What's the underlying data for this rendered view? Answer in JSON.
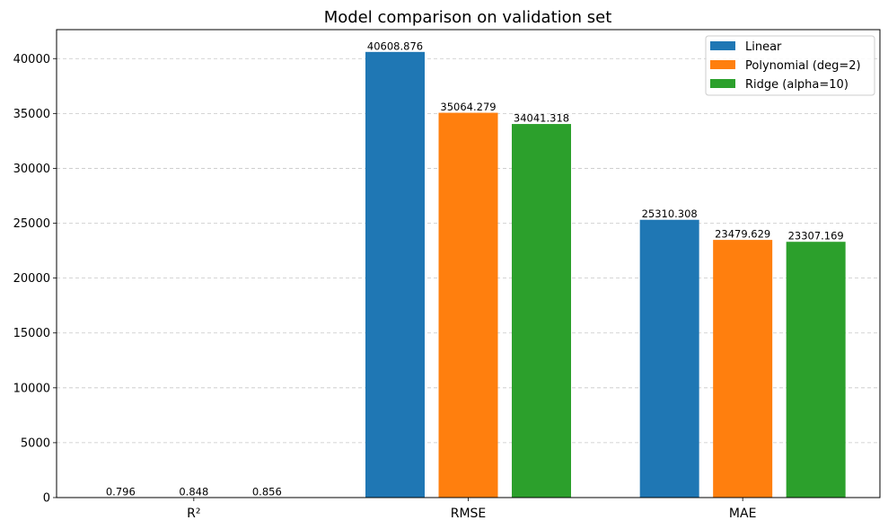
{
  "chart_data": {
    "type": "bar",
    "title": "Model comparison on validation set",
    "xlabel": "",
    "ylabel": "",
    "categories": [
      "R²",
      "RMSE",
      "MAE"
    ],
    "series": [
      {
        "name": "Linear",
        "color": "#1f77b4",
        "values": [
          0.796,
          40608.876,
          25310.308
        ],
        "labels": [
          "0.796",
          "40608.876",
          "25310.308"
        ]
      },
      {
        "name": "Polynomial (deg=2)",
        "color": "#ff7f0e",
        "values": [
          0.848,
          35064.279,
          23479.629
        ],
        "labels": [
          "0.848",
          "35064.279",
          "23479.629"
        ]
      },
      {
        "name": "Ridge (alpha=10)",
        "color": "#2ca02c",
        "values": [
          0.856,
          34041.318,
          23307.169
        ],
        "labels": [
          "0.856",
          "34041.318",
          "23307.169"
        ]
      }
    ],
    "ylim": [
      0,
      42640
    ],
    "yticks": [
      0,
      5000,
      10000,
      15000,
      20000,
      25000,
      30000,
      35000,
      40000
    ],
    "grid": "horizontal dashed",
    "legend": "top-right"
  }
}
